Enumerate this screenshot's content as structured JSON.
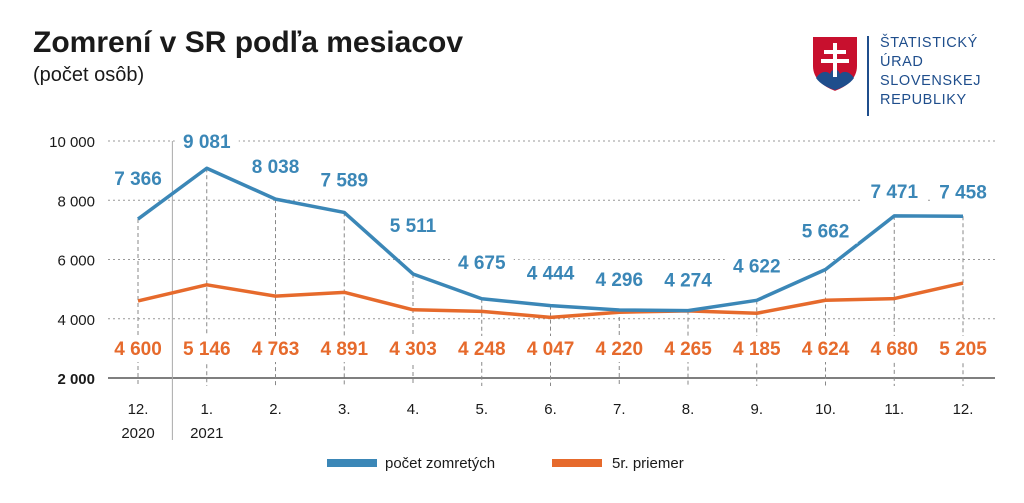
{
  "header": {
    "title": "Zomrení v SR podľa mesiacov",
    "subtitle": "(počet osôb)"
  },
  "logo": {
    "icon": "slovak-coat-of-arms",
    "lines": [
      "ŠTATISTICKÝ",
      "ÚRAD",
      "SLOVENSKEJ",
      "REPUBLIKY"
    ]
  },
  "colors": {
    "series_blue": "#3b87b7",
    "series_orange": "#e66a2c",
    "grid": "#999999",
    "text": "#1a1a1a"
  },
  "chart_data": {
    "type": "line",
    "categories": [
      "12.",
      "1.",
      "2.",
      "3.",
      "4.",
      "5.",
      "6.",
      "7.",
      "8.",
      "9.",
      "10.",
      "11.",
      "12."
    ],
    "category_years": [
      "2020",
      "2021",
      "",
      "",
      "",
      "",
      "",
      "",
      "",
      "",
      "",
      "",
      ""
    ],
    "y_ticks": [
      "10 000",
      "8 000",
      "6 000",
      "4 000",
      "2 000"
    ],
    "y_tick_values": [
      10000,
      8000,
      6000,
      4000,
      2000
    ],
    "ylim": [
      2000,
      10000
    ],
    "grid": "horizontal-dotted",
    "legend_position": "bottom",
    "series": [
      {
        "name": "počet zomretých",
        "color": "#3b87b7",
        "values": [
          7366,
          9081,
          8038,
          7589,
          5511,
          4675,
          4444,
          4296,
          4274,
          4622,
          5662,
          7471,
          7458
        ],
        "labels": [
          "7 366",
          "9 081",
          "8 038",
          "7 589",
          "5 511",
          "4 675",
          "4 444",
          "4 296",
          "4 274",
          "4 622",
          "5 662",
          "7 471",
          "7 458"
        ]
      },
      {
        "name": "5r. priemer",
        "color": "#e66a2c",
        "values": [
          4600,
          5146,
          4763,
          4891,
          4303,
          4248,
          4047,
          4220,
          4265,
          4185,
          4624,
          4680,
          5205
        ],
        "labels": [
          "4 600",
          "5 146",
          "4 763",
          "4 891",
          "4 303",
          "4 248",
          "4 047",
          "4 220",
          "4 265",
          "4 185",
          "4 624",
          "4 680",
          "5 205"
        ]
      }
    ]
  }
}
